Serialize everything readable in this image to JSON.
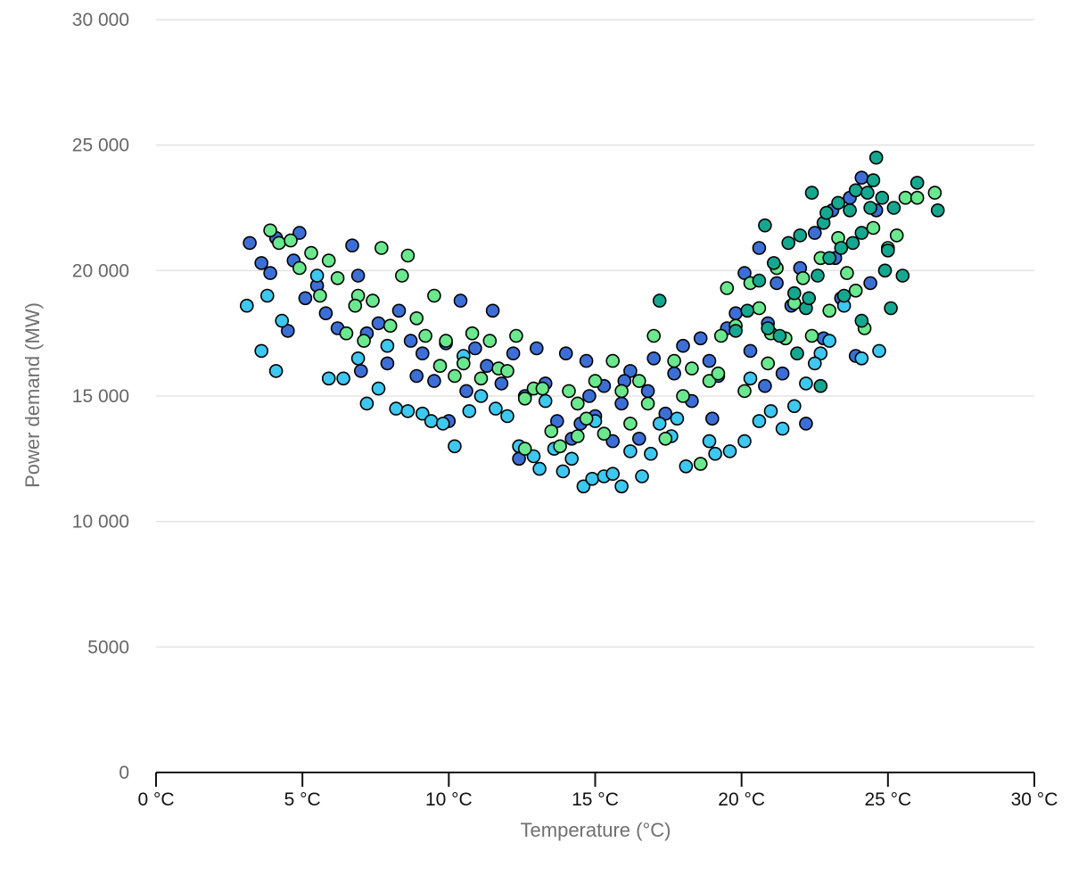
{
  "chart_data": {
    "type": "scatter",
    "title": "",
    "xlabel": "Temperature (°C)",
    "ylabel": "Power demand (MW)",
    "xlim": [
      0,
      30
    ],
    "ylim": [
      0,
      30000
    ],
    "x_ticks": [
      0,
      5,
      10,
      15,
      20,
      25,
      30
    ],
    "x_tick_labels": [
      "0 °C",
      "5 °C",
      "10 °C",
      "15 °C",
      "20 °C",
      "25 °C",
      "30 °C"
    ],
    "y_ticks": [
      0,
      5000,
      10000,
      15000,
      20000,
      25000,
      30000
    ],
    "y_tick_labels": [
      "0",
      "5000",
      "10 000",
      "15 000",
      "20 000",
      "25 000",
      "30 000"
    ],
    "grid": true,
    "legend": "none",
    "colors": [
      "#3c6fd6",
      "#3cc8f0",
      "#6ae88e",
      "#14a890"
    ],
    "series": [
      {
        "color": "#3c6fd6",
        "points": [
          [
            3.2,
            21100
          ],
          [
            3.6,
            20300
          ],
          [
            3.9,
            19900
          ],
          [
            4.1,
            21300
          ],
          [
            4.7,
            20400
          ],
          [
            4.9,
            21500
          ],
          [
            5.1,
            18900
          ],
          [
            5.5,
            19400
          ],
          [
            5.8,
            18300
          ],
          [
            6.2,
            17700
          ],
          [
            6.7,
            21000
          ],
          [
            6.9,
            19800
          ],
          [
            7.2,
            17500
          ],
          [
            7.6,
            17900
          ],
          [
            7.9,
            16300
          ],
          [
            8.3,
            18400
          ],
          [
            8.7,
            17200
          ],
          [
            9.1,
            16700
          ],
          [
            9.5,
            15600
          ],
          [
            9.9,
            17100
          ],
          [
            10.4,
            18800
          ],
          [
            10.6,
            15200
          ],
          [
            10.9,
            16900
          ],
          [
            11.3,
            16200
          ],
          [
            11.5,
            18400
          ],
          [
            11.8,
            15500
          ],
          [
            12.2,
            16700
          ],
          [
            12.6,
            15000
          ],
          [
            13.0,
            16900
          ],
          [
            13.3,
            15500
          ],
          [
            13.7,
            14000
          ],
          [
            14.0,
            16700
          ],
          [
            14.2,
            13300
          ],
          [
            14.5,
            13900
          ],
          [
            14.7,
            16400
          ],
          [
            15.0,
            14200
          ],
          [
            15.3,
            15400
          ],
          [
            15.6,
            13200
          ],
          [
            15.9,
            14700
          ],
          [
            16.2,
            16000
          ],
          [
            16.5,
            13300
          ],
          [
            16.8,
            15200
          ],
          [
            17.0,
            16500
          ],
          [
            17.4,
            14300
          ],
          [
            17.7,
            15900
          ],
          [
            18.0,
            17000
          ],
          [
            18.3,
            14800
          ],
          [
            18.6,
            17300
          ],
          [
            18.9,
            16400
          ],
          [
            19.2,
            15800
          ],
          [
            19.5,
            17700
          ],
          [
            19.8,
            18300
          ],
          [
            20.1,
            19900
          ],
          [
            20.3,
            16800
          ],
          [
            20.6,
            20900
          ],
          [
            20.9,
            17900
          ],
          [
            21.2,
            19500
          ],
          [
            21.4,
            15900
          ],
          [
            21.7,
            18600
          ],
          [
            22.0,
            20100
          ],
          [
            22.2,
            13900
          ],
          [
            22.5,
            21500
          ],
          [
            22.8,
            17300
          ],
          [
            23.1,
            22400
          ],
          [
            23.4,
            18900
          ],
          [
            23.7,
            22900
          ],
          [
            23.9,
            16600
          ],
          [
            24.1,
            23700
          ],
          [
            24.4,
            19500
          ],
          [
            24.6,
            22400
          ],
          [
            4.5,
            17600
          ],
          [
            7.0,
            16000
          ],
          [
            12.4,
            12500
          ],
          [
            19.0,
            14100
          ],
          [
            23.2,
            20500
          ],
          [
            16.0,
            15600
          ],
          [
            8.9,
            15800
          ],
          [
            10.0,
            14000
          ],
          [
            20.8,
            15400
          ],
          [
            14.8,
            15000
          ]
        ]
      },
      {
        "color": "#3cc8f0",
        "points": [
          [
            3.1,
            18600
          ],
          [
            3.6,
            16800
          ],
          [
            4.1,
            16000
          ],
          [
            4.3,
            18000
          ],
          [
            5.9,
            15700
          ],
          [
            6.4,
            15700
          ],
          [
            6.9,
            16500
          ],
          [
            7.2,
            14700
          ],
          [
            7.6,
            15300
          ],
          [
            8.2,
            14500
          ],
          [
            8.6,
            14400
          ],
          [
            9.1,
            14300
          ],
          [
            9.4,
            14000
          ],
          [
            9.8,
            13900
          ],
          [
            10.2,
            13000
          ],
          [
            10.7,
            14400
          ],
          [
            11.1,
            15000
          ],
          [
            11.6,
            14500
          ],
          [
            12.0,
            14200
          ],
          [
            12.4,
            13000
          ],
          [
            12.9,
            12600
          ],
          [
            13.1,
            12100
          ],
          [
            13.6,
            12900
          ],
          [
            13.9,
            12000
          ],
          [
            14.2,
            12500
          ],
          [
            14.6,
            11400
          ],
          [
            14.9,
            11700
          ],
          [
            15.3,
            11800
          ],
          [
            15.6,
            11900
          ],
          [
            15.9,
            11400
          ],
          [
            16.2,
            12800
          ],
          [
            16.6,
            11800
          ],
          [
            16.9,
            12700
          ],
          [
            17.2,
            13900
          ],
          [
            17.6,
            13400
          ],
          [
            18.1,
            12200
          ],
          [
            18.6,
            12300
          ],
          [
            19.1,
            12700
          ],
          [
            19.6,
            12800
          ],
          [
            20.1,
            13200
          ],
          [
            20.6,
            14000
          ],
          [
            21.0,
            14400
          ],
          [
            21.4,
            13700
          ],
          [
            21.8,
            14600
          ],
          [
            22.2,
            15500
          ],
          [
            22.7,
            16700
          ],
          [
            23.0,
            17200
          ],
          [
            23.5,
            18600
          ],
          [
            24.1,
            16500
          ],
          [
            24.7,
            16800
          ],
          [
            3.8,
            19000
          ],
          [
            5.5,
            19800
          ],
          [
            7.9,
            17000
          ],
          [
            10.5,
            16600
          ],
          [
            13.3,
            14800
          ],
          [
            17.8,
            14100
          ],
          [
            20.3,
            15700
          ],
          [
            22.5,
            16300
          ],
          [
            15.0,
            14000
          ],
          [
            18.9,
            13200
          ]
        ]
      },
      {
        "color": "#6ae88e",
        "points": [
          [
            3.9,
            21600
          ],
          [
            4.2,
            21100
          ],
          [
            4.6,
            21200
          ],
          [
            4.9,
            20100
          ],
          [
            5.3,
            20700
          ],
          [
            5.6,
            19000
          ],
          [
            5.9,
            20400
          ],
          [
            6.2,
            19700
          ],
          [
            6.5,
            17500
          ],
          [
            6.9,
            19000
          ],
          [
            7.1,
            17200
          ],
          [
            7.4,
            18800
          ],
          [
            7.7,
            20900
          ],
          [
            8.0,
            17800
          ],
          [
            8.4,
            19800
          ],
          [
            8.6,
            20600
          ],
          [
            8.9,
            18100
          ],
          [
            9.2,
            17400
          ],
          [
            9.5,
            19000
          ],
          [
            9.9,
            17200
          ],
          [
            10.2,
            15800
          ],
          [
            10.5,
            16300
          ],
          [
            10.8,
            17500
          ],
          [
            11.1,
            15700
          ],
          [
            11.4,
            17200
          ],
          [
            11.7,
            16100
          ],
          [
            12.0,
            16000
          ],
          [
            12.3,
            17400
          ],
          [
            12.6,
            14900
          ],
          [
            12.9,
            15300
          ],
          [
            13.2,
            15300
          ],
          [
            13.5,
            13600
          ],
          [
            13.8,
            13000
          ],
          [
            14.1,
            15200
          ],
          [
            14.4,
            13400
          ],
          [
            14.7,
            14100
          ],
          [
            15.0,
            15600
          ],
          [
            15.3,
            13500
          ],
          [
            15.6,
            16400
          ],
          [
            15.9,
            15200
          ],
          [
            16.2,
            13900
          ],
          [
            16.5,
            15600
          ],
          [
            16.8,
            14700
          ],
          [
            17.0,
            17400
          ],
          [
            17.4,
            13300
          ],
          [
            17.7,
            16400
          ],
          [
            18.0,
            15000
          ],
          [
            18.3,
            16100
          ],
          [
            18.6,
            12300
          ],
          [
            18.9,
            15600
          ],
          [
            19.2,
            15900
          ],
          [
            19.5,
            19300
          ],
          [
            19.8,
            17800
          ],
          [
            20.1,
            15200
          ],
          [
            20.3,
            19500
          ],
          [
            20.6,
            18500
          ],
          [
            20.9,
            16300
          ],
          [
            21.2,
            20100
          ],
          [
            21.5,
            17300
          ],
          [
            21.8,
            18700
          ],
          [
            22.1,
            19700
          ],
          [
            22.4,
            17400
          ],
          [
            22.7,
            20500
          ],
          [
            23.0,
            18400
          ],
          [
            23.3,
            21300
          ],
          [
            23.6,
            19900
          ],
          [
            23.9,
            19200
          ],
          [
            24.2,
            17700
          ],
          [
            24.5,
            21700
          ],
          [
            25.0,
            20900
          ],
          [
            25.3,
            21400
          ],
          [
            25.6,
            22900
          ],
          [
            26.0,
            22900
          ],
          [
            26.6,
            23100
          ],
          [
            6.8,
            18600
          ],
          [
            9.7,
            16200
          ],
          [
            14.4,
            14700
          ],
          [
            19.3,
            17400
          ],
          [
            21.0,
            17500
          ],
          [
            12.6,
            12900
          ]
        ]
      },
      {
        "color": "#14a890",
        "points": [
          [
            17.2,
            18800
          ],
          [
            19.8,
            17600
          ],
          [
            20.2,
            18400
          ],
          [
            20.6,
            19600
          ],
          [
            20.9,
            17700
          ],
          [
            21.1,
            20300
          ],
          [
            21.3,
            17400
          ],
          [
            21.6,
            21100
          ],
          [
            21.8,
            19100
          ],
          [
            22.0,
            21400
          ],
          [
            22.2,
            18500
          ],
          [
            22.4,
            23100
          ],
          [
            22.6,
            19800
          ],
          [
            22.8,
            21900
          ],
          [
            23.0,
            20500
          ],
          [
            23.3,
            22700
          ],
          [
            23.5,
            19000
          ],
          [
            23.7,
            22400
          ],
          [
            23.9,
            23200
          ],
          [
            24.1,
            21500
          ],
          [
            24.3,
            23100
          ],
          [
            24.5,
            23600
          ],
          [
            24.6,
            24500
          ],
          [
            24.8,
            22900
          ],
          [
            25.0,
            20800
          ],
          [
            25.2,
            22500
          ],
          [
            25.5,
            19800
          ],
          [
            26.0,
            23500
          ],
          [
            26.7,
            22400
          ],
          [
            25.1,
            18500
          ],
          [
            24.9,
            20000
          ],
          [
            24.1,
            18000
          ],
          [
            23.4,
            20900
          ],
          [
            22.9,
            22300
          ],
          [
            21.9,
            16700
          ],
          [
            20.8,
            21800
          ],
          [
            22.7,
            15400
          ],
          [
            24.4,
            22500
          ],
          [
            23.8,
            21100
          ],
          [
            22.3,
            18900
          ]
        ]
      }
    ]
  }
}
